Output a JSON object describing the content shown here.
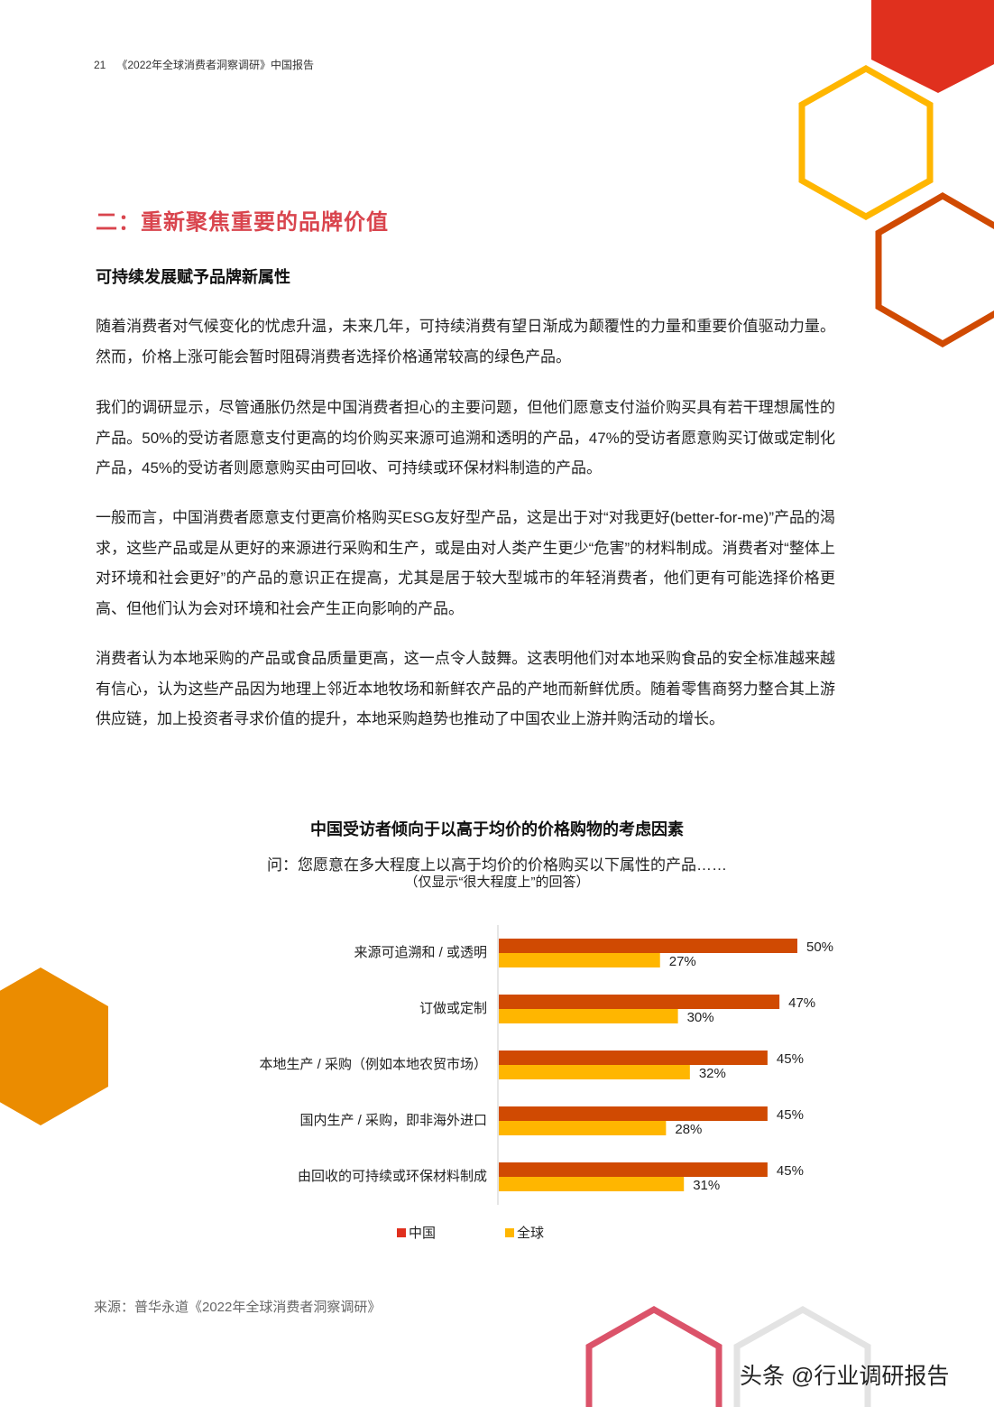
{
  "header": {
    "page_number": "21",
    "report_title": "《2022年全球消费者洞察调研》中国报告"
  },
  "section_title": "二：重新聚焦重要的品牌价值",
  "subsection_title": "可持续发展赋予品牌新属性",
  "paragraphs": [
    "随着消费者对气候变化的忧虑升温，未来几年，可持续消费有望日渐成为颠覆性的力量和重要价值驱动力量。然而，价格上涨可能会暂时阻碍消费者选择价格通常较高的绿色产品。",
    "我们的调研显示，尽管通胀仍然是中国消费者担心的主要问题，但他们愿意支付溢价购买具有若干理想属性的产品。50%的受访者愿意支付更高的均价购买来源可追溯和透明的产品，47%的受访者愿意购买订做或定制化产品，45%的受访者则愿意购买由可回收、可持续或环保材料制造的产品。",
    "一般而言，中国消费者愿意支付更高价格购买ESG友好型产品，这是出于对“对我更好(better-for-me)”产品的渴求，这些产品或是从更好的来源进行采购和生产，或是由对人类产生更少“危害”的材料制成。消费者对“整体上对环境和社会更好”的产品的意识正在提高，尤其是居于较大型城市的年轻消费者，他们更有可能选择价格更高、但他们认为会对环境和社会产生正向影响的产品。",
    "消费者认为本地采购的产品或食品质量更高，这一点令人鼓舞。这表明他们对本地采购食品的安全标准越来越有信心，认为这些产品因为地理上邻近本地牧场和新鲜农产品的产地而新鲜优质。随着零售商努力整合其上游供应链，加上投资者寻求价值的提升，本地采购趋势也推动了中国农业上游并购活动的增长。"
  ],
  "chart_data": {
    "type": "bar",
    "orientation": "horizontal",
    "title": "中国受访者倾向于以高于均价的价格购物的考虑因素",
    "subtitle": "问：您愿意在多大程度上以高于均价的价格购买以下属性的产品……",
    "note": "（仅显示“很大程度上”的回答）",
    "categories": [
      "来源可追溯和 / 或透明",
      "订做或定制",
      "本地生产 / 采购（例如本地农贸市场）",
      "国内生产 / 采购，即非海外进口",
      "由回收的可持续或环保材料制成"
    ],
    "series": [
      {
        "name": "中国",
        "values": [
          50,
          47,
          45,
          45,
          45
        ],
        "color": "#D04A02"
      },
      {
        "name": "全球",
        "values": [
          27,
          30,
          32,
          28,
          31
        ],
        "color": "#FFB600"
      }
    ],
    "value_suffix": "%",
    "legend": "bottom",
    "grid": false
  },
  "source": "来源：普华永道《2022年全球消费者洞察调研》",
  "watermark": "头条 @行业调研报告",
  "colors": {
    "accent_red": "#E0301E",
    "yellow": "#FFB600",
    "orange": "#D04A02",
    "amber": "#EB8C00",
    "pink": "#DB536A",
    "title_red": "#D9454E"
  }
}
